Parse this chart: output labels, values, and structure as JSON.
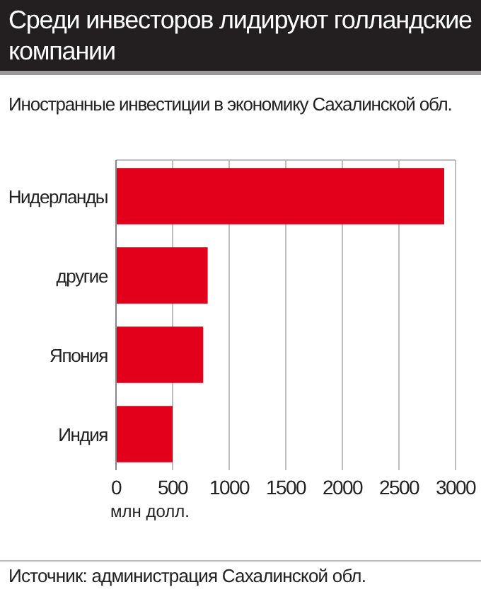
{
  "chart_data": {
    "type": "bar",
    "orientation": "horizontal",
    "title": "Среди инвесторов лидируют голландские компании",
    "subtitle": "Иностранные инвестиции в экономику Сахалинской обл.",
    "xlabel": "млн долл.",
    "categories": [
      "Нидерланды",
      "другие",
      "Япония",
      "Индия"
    ],
    "values": [
      2900,
      810,
      770,
      500
    ],
    "color": "#e2001a",
    "xlim": [
      0,
      3000
    ],
    "xticks": [
      0,
      500,
      1000,
      1500,
      2000,
      2500,
      3000
    ],
    "grid": "x",
    "annotations": [
      "Источник: администрация Сахалинской обл."
    ]
  }
}
